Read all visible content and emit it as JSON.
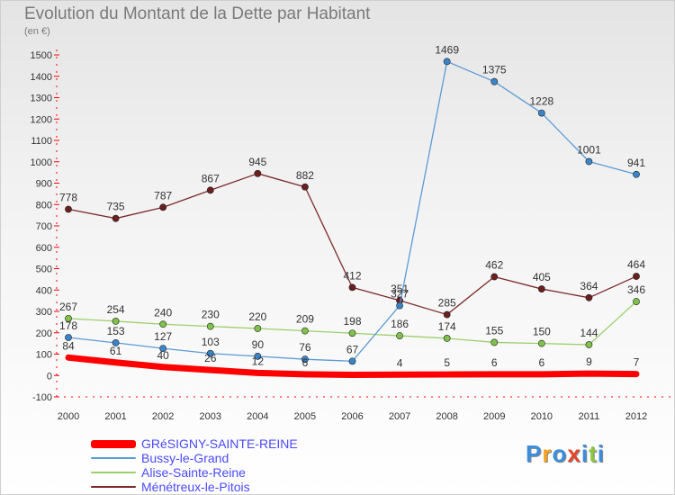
{
  "title": "Evolution du Montant de la Dette par Habitant",
  "subtitle": "(en €)",
  "logo": {
    "text": "Proxiti",
    "colors": [
      "#3b8ede",
      "#f7a11a",
      "#3b8ede",
      "#e5452c",
      "#3b8ede",
      "#8cc63f",
      "#3b8ede"
    ]
  },
  "chart_data": {
    "type": "line",
    "x": [
      "2000",
      "2001",
      "2002",
      "2003",
      "2004",
      "2005",
      "2006",
      "2007",
      "2008",
      "2009",
      "2010",
      "2011",
      "2012"
    ],
    "ylim": [
      -100,
      1500
    ],
    "yticks": [
      -100,
      0,
      100,
      200,
      300,
      400,
      500,
      600,
      700,
      800,
      900,
      1000,
      1100,
      1200,
      1300,
      1400,
      1500
    ],
    "grid": false,
    "legend": "bottom-left",
    "series": [
      {
        "name": "GRéSIGNY-SAINTE-REINE",
        "color": "#ff0000",
        "width": 7,
        "marker": false,
        "values": [
          84,
          61,
          40,
          26,
          12,
          6,
          3,
          4,
          5,
          6,
          6,
          9,
          7
        ],
        "labels": [
          "84",
          "61",
          "40",
          "26",
          "12",
          "6",
          "",
          "4",
          "5",
          "6",
          "6",
          "9",
          "7"
        ]
      },
      {
        "name": "Bussy-le-Grand",
        "color": "#5b9bd5",
        "dot": "#3a85c9",
        "width": 1.3,
        "marker": true,
        "values": [
          178,
          153,
          127,
          103,
          90,
          76,
          67,
          327,
          1469,
          1375,
          1228,
          1001,
          941
        ],
        "labels": [
          "178",
          "153",
          "127",
          "103",
          "90",
          "76",
          "67",
          "327",
          "1469",
          "1375",
          "1228",
          "1001",
          "941"
        ]
      },
      {
        "name": "Alise-Sainte-Reine",
        "color": "#9ad06a",
        "dot": "#80c24c",
        "width": 1.3,
        "marker": true,
        "values": [
          267,
          254,
          240,
          230,
          220,
          209,
          198,
          186,
          174,
          155,
          150,
          144,
          346
        ],
        "labels": [
          "267",
          "254",
          "240",
          "230",
          "220",
          "209",
          "198",
          "186",
          "174",
          "155",
          "150",
          "144",
          "346"
        ]
      },
      {
        "name": "Ménétreux-le-Pitois",
        "color": "#7b2a2a",
        "dot": "#6b1f1f",
        "width": 1.3,
        "marker": true,
        "values": [
          778,
          735,
          787,
          867,
          945,
          882,
          412,
          351,
          285,
          462,
          405,
          364,
          464
        ],
        "labels": [
          "778",
          "735",
          "787",
          "867",
          "945",
          "882",
          "412",
          "351",
          "285",
          "462",
          "405",
          "364",
          "464"
        ]
      }
    ]
  }
}
